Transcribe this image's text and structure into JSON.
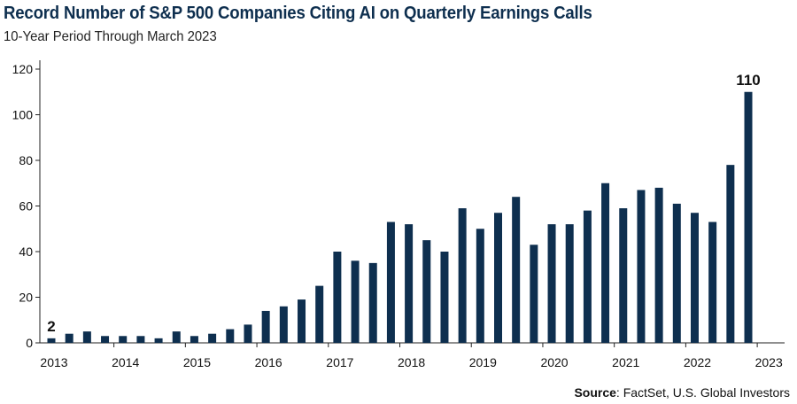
{
  "title": "Record Number of S&P 500 Companies Citing AI on Quarterly Earnings Calls",
  "subtitle": "10-Year Period Through March 2023",
  "source_label": "Source",
  "source_text": ": FactSet, U.S. Global Investors",
  "colors": {
    "bar": "#0e2f4f",
    "title": "#0e2f4f",
    "axis": "#222222"
  },
  "chart_data": {
    "type": "bar",
    "title": "Record Number of S&P 500 Companies Citing AI on Quarterly Earnings Calls",
    "xlabel": "",
    "ylabel": "",
    "ylim": [
      0,
      120
    ],
    "yticks": [
      0,
      20,
      40,
      60,
      80,
      100,
      120
    ],
    "year_labels": [
      "2013",
      "2014",
      "2015",
      "2016",
      "2017",
      "2018",
      "2019",
      "2020",
      "2021",
      "2022",
      "2023"
    ],
    "values": [
      2,
      4,
      5,
      3,
      3,
      3,
      2,
      5,
      3,
      4,
      6,
      8,
      14,
      16,
      19,
      25,
      40,
      36,
      35,
      53,
      52,
      45,
      40,
      59,
      50,
      57,
      64,
      43,
      52,
      52,
      58,
      70,
      59,
      67,
      68,
      61,
      57,
      53,
      78,
      110
    ],
    "annotations": [
      {
        "index": 0,
        "text": "2"
      },
      {
        "index": 39,
        "text": "110"
      }
    ]
  }
}
